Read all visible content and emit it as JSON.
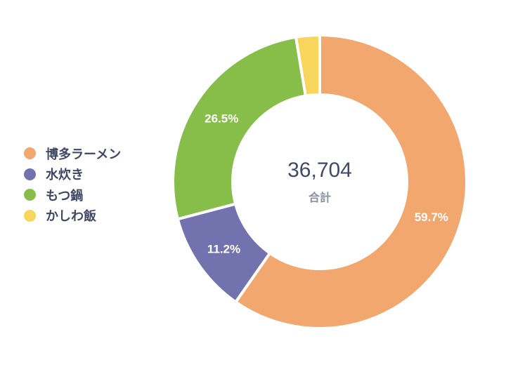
{
  "chart_data": {
    "type": "pie",
    "donut": true,
    "categories": [
      "博多ラーメン",
      "水炊き",
      "もつ鍋",
      "かしわ飯"
    ],
    "values": [
      59.7,
      11.2,
      26.5,
      2.6
    ],
    "labels": [
      "59.7%",
      "11.2%",
      "26.5%",
      ""
    ],
    "colors": [
      "#F2A76E",
      "#7172AE",
      "#87BE4A",
      "#F8D55D"
    ],
    "center_value": "36,704",
    "center_label": "合計",
    "legend_position": "left"
  }
}
